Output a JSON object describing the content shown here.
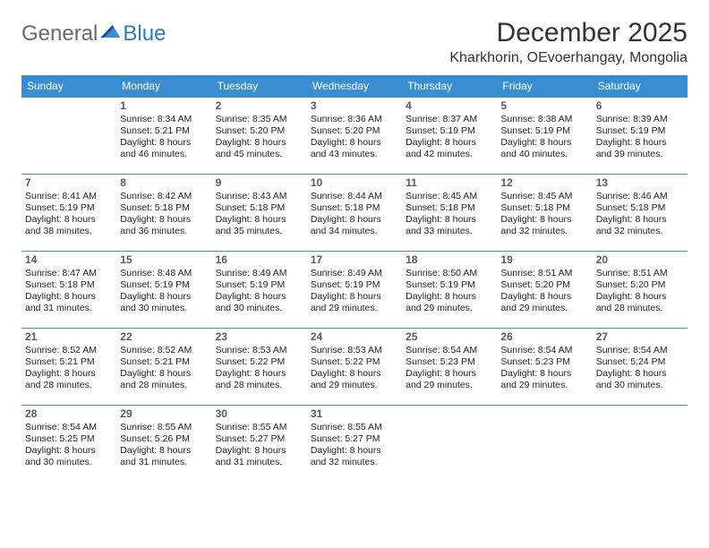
{
  "brand": {
    "part1": "General",
    "part2": "Blue"
  },
  "title": "December 2025",
  "location": "Kharkhorin, OEvoerhangay, Mongolia",
  "colors": {
    "header_bg": "#3a8ed0",
    "header_text": "#ffffff",
    "cell_border": "#3a8ed0",
    "page_bg": "#ffffff",
    "text": "#222222",
    "daynum": "#5a5a5a",
    "logo_gray": "#6a6a6a",
    "logo_blue": "#2f78bd"
  },
  "weekdays": [
    "Sunday",
    "Monday",
    "Tuesday",
    "Wednesday",
    "Thursday",
    "Friday",
    "Saturday"
  ],
  "cells": [
    {
      "blank": true
    },
    {
      "day": "1",
      "sunrise": "Sunrise: 8:34 AM",
      "sunset": "Sunset: 5:21 PM",
      "daylight": "Daylight: 8 hours and 46 minutes."
    },
    {
      "day": "2",
      "sunrise": "Sunrise: 8:35 AM",
      "sunset": "Sunset: 5:20 PM",
      "daylight": "Daylight: 8 hours and 45 minutes."
    },
    {
      "day": "3",
      "sunrise": "Sunrise: 8:36 AM",
      "sunset": "Sunset: 5:20 PM",
      "daylight": "Daylight: 8 hours and 43 minutes."
    },
    {
      "day": "4",
      "sunrise": "Sunrise: 8:37 AM",
      "sunset": "Sunset: 5:19 PM",
      "daylight": "Daylight: 8 hours and 42 minutes."
    },
    {
      "day": "5",
      "sunrise": "Sunrise: 8:38 AM",
      "sunset": "Sunset: 5:19 PM",
      "daylight": "Daylight: 8 hours and 40 minutes."
    },
    {
      "day": "6",
      "sunrise": "Sunrise: 8:39 AM",
      "sunset": "Sunset: 5:19 PM",
      "daylight": "Daylight: 8 hours and 39 minutes."
    },
    {
      "day": "7",
      "sunrise": "Sunrise: 8:41 AM",
      "sunset": "Sunset: 5:19 PM",
      "daylight": "Daylight: 8 hours and 38 minutes."
    },
    {
      "day": "8",
      "sunrise": "Sunrise: 8:42 AM",
      "sunset": "Sunset: 5:18 PM",
      "daylight": "Daylight: 8 hours and 36 minutes."
    },
    {
      "day": "9",
      "sunrise": "Sunrise: 8:43 AM",
      "sunset": "Sunset: 5:18 PM",
      "daylight": "Daylight: 8 hours and 35 minutes."
    },
    {
      "day": "10",
      "sunrise": "Sunrise: 8:44 AM",
      "sunset": "Sunset: 5:18 PM",
      "daylight": "Daylight: 8 hours and 34 minutes."
    },
    {
      "day": "11",
      "sunrise": "Sunrise: 8:45 AM",
      "sunset": "Sunset: 5:18 PM",
      "daylight": "Daylight: 8 hours and 33 minutes."
    },
    {
      "day": "12",
      "sunrise": "Sunrise: 8:45 AM",
      "sunset": "Sunset: 5:18 PM",
      "daylight": "Daylight: 8 hours and 32 minutes."
    },
    {
      "day": "13",
      "sunrise": "Sunrise: 8:46 AM",
      "sunset": "Sunset: 5:18 PM",
      "daylight": "Daylight: 8 hours and 32 minutes."
    },
    {
      "day": "14",
      "sunrise": "Sunrise: 8:47 AM",
      "sunset": "Sunset: 5:18 PM",
      "daylight": "Daylight: 8 hours and 31 minutes."
    },
    {
      "day": "15",
      "sunrise": "Sunrise: 8:48 AM",
      "sunset": "Sunset: 5:19 PM",
      "daylight": "Daylight: 8 hours and 30 minutes."
    },
    {
      "day": "16",
      "sunrise": "Sunrise: 8:49 AM",
      "sunset": "Sunset: 5:19 PM",
      "daylight": "Daylight: 8 hours and 30 minutes."
    },
    {
      "day": "17",
      "sunrise": "Sunrise: 8:49 AM",
      "sunset": "Sunset: 5:19 PM",
      "daylight": "Daylight: 8 hours and 29 minutes."
    },
    {
      "day": "18",
      "sunrise": "Sunrise: 8:50 AM",
      "sunset": "Sunset: 5:19 PM",
      "daylight": "Daylight: 8 hours and 29 minutes."
    },
    {
      "day": "19",
      "sunrise": "Sunrise: 8:51 AM",
      "sunset": "Sunset: 5:20 PM",
      "daylight": "Daylight: 8 hours and 29 minutes."
    },
    {
      "day": "20",
      "sunrise": "Sunrise: 8:51 AM",
      "sunset": "Sunset: 5:20 PM",
      "daylight": "Daylight: 8 hours and 28 minutes."
    },
    {
      "day": "21",
      "sunrise": "Sunrise: 8:52 AM",
      "sunset": "Sunset: 5:21 PM",
      "daylight": "Daylight: 8 hours and 28 minutes."
    },
    {
      "day": "22",
      "sunrise": "Sunrise: 8:52 AM",
      "sunset": "Sunset: 5:21 PM",
      "daylight": "Daylight: 8 hours and 28 minutes."
    },
    {
      "day": "23",
      "sunrise": "Sunrise: 8:53 AM",
      "sunset": "Sunset: 5:22 PM",
      "daylight": "Daylight: 8 hours and 28 minutes."
    },
    {
      "day": "24",
      "sunrise": "Sunrise: 8:53 AM",
      "sunset": "Sunset: 5:22 PM",
      "daylight": "Daylight: 8 hours and 29 minutes."
    },
    {
      "day": "25",
      "sunrise": "Sunrise: 8:54 AM",
      "sunset": "Sunset: 5:23 PM",
      "daylight": "Daylight: 8 hours and 29 minutes."
    },
    {
      "day": "26",
      "sunrise": "Sunrise: 8:54 AM",
      "sunset": "Sunset: 5:23 PM",
      "daylight": "Daylight: 8 hours and 29 minutes."
    },
    {
      "day": "27",
      "sunrise": "Sunrise: 8:54 AM",
      "sunset": "Sunset: 5:24 PM",
      "daylight": "Daylight: 8 hours and 30 minutes."
    },
    {
      "day": "28",
      "sunrise": "Sunrise: 8:54 AM",
      "sunset": "Sunset: 5:25 PM",
      "daylight": "Daylight: 8 hours and 30 minutes."
    },
    {
      "day": "29",
      "sunrise": "Sunrise: 8:55 AM",
      "sunset": "Sunset: 5:26 PM",
      "daylight": "Daylight: 8 hours and 31 minutes."
    },
    {
      "day": "30",
      "sunrise": "Sunrise: 8:55 AM",
      "sunset": "Sunset: 5:27 PM",
      "daylight": "Daylight: 8 hours and 31 minutes."
    },
    {
      "day": "31",
      "sunrise": "Sunrise: 8:55 AM",
      "sunset": "Sunset: 5:27 PM",
      "daylight": "Daylight: 8 hours and 32 minutes."
    },
    {
      "blank": true
    },
    {
      "blank": true
    },
    {
      "blank": true
    }
  ]
}
